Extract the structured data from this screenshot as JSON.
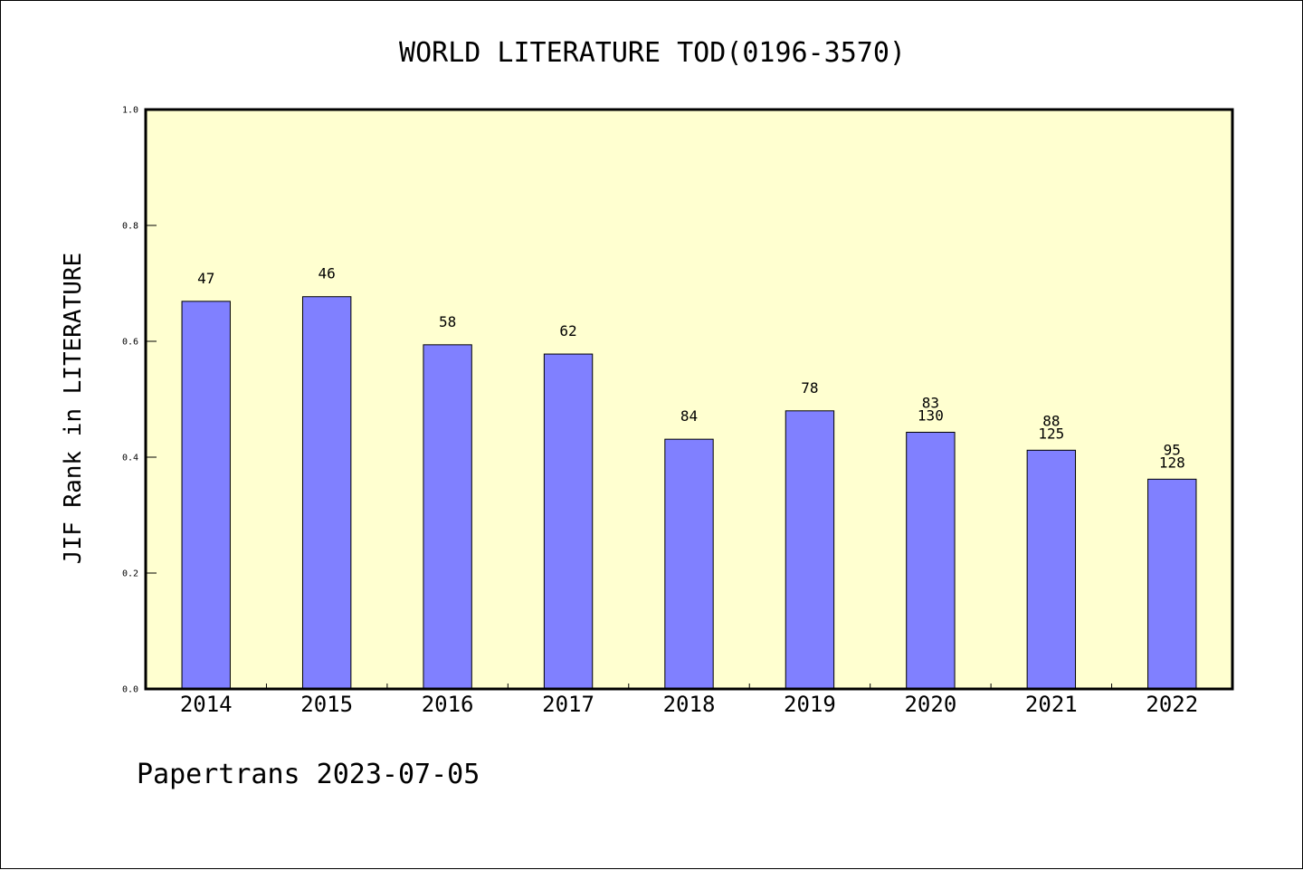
{
  "chart_data": {
    "type": "bar",
    "title": "WORLD LITERATURE TOD(0196-3570)",
    "ylabel": "JIF Rank in LITERATURE",
    "xlabel": "",
    "ylim": [
      0.0,
      1.0
    ],
    "yticks": [
      "0.0",
      "0.2",
      "0.4",
      "0.6",
      "0.8",
      "1.0"
    ],
    "grid": false,
    "colors": {
      "plot_background": "#ffffd0",
      "bar_fill": "#8080ff",
      "bar_edge": "#000000"
    },
    "categories": [
      "2014",
      "2015",
      "2016",
      "2017",
      "2018",
      "2019",
      "2020",
      "2021",
      "2022"
    ],
    "values": [
      0.669,
      0.677,
      0.594,
      0.578,
      0.431,
      0.48,
      0.443,
      0.412,
      0.362
    ],
    "bar_labels": [
      [
        "47"
      ],
      [
        "46"
      ],
      [
        "58"
      ],
      [
        "62"
      ],
      [
        "84"
      ],
      [
        "78"
      ],
      [
        "83",
        "130"
      ],
      [
        "88",
        "125"
      ],
      [
        "95",
        "128"
      ]
    ]
  },
  "footer": "Papertrans 2023-07-05"
}
